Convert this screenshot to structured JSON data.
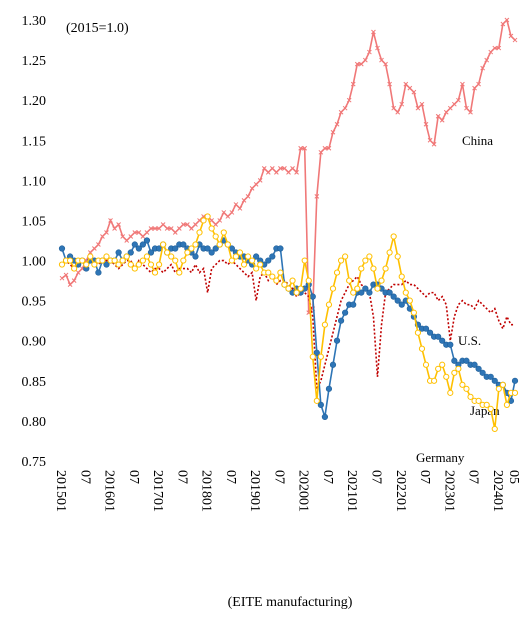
{
  "chart_data": {
    "type": "line",
    "annotation": "(2015=1.0)",
    "x_label": "(EITE manufacturing)",
    "categories": [
      "201501",
      null,
      null,
      null,
      null,
      null,
      "07",
      null,
      null,
      null,
      null,
      null,
      "201601",
      null,
      null,
      null,
      null,
      null,
      "07",
      null,
      null,
      null,
      null,
      null,
      "201701",
      null,
      null,
      null,
      null,
      null,
      "07",
      null,
      null,
      null,
      null,
      null,
      "201801",
      null,
      null,
      null,
      null,
      null,
      "07",
      null,
      null,
      null,
      null,
      null,
      "201901",
      null,
      null,
      null,
      null,
      null,
      "07",
      null,
      null,
      null,
      null,
      null,
      "202001",
      null,
      null,
      null,
      null,
      null,
      "07",
      null,
      null,
      null,
      null,
      null,
      "202101",
      null,
      null,
      null,
      null,
      null,
      "07",
      null,
      null,
      null,
      null,
      null,
      "202201",
      null,
      null,
      null,
      null,
      null,
      "07",
      null,
      null,
      null,
      null,
      null,
      "202301",
      null,
      null,
      null,
      null,
      null,
      "07",
      null,
      null,
      null,
      null,
      null,
      "202401",
      null,
      null,
      null,
      "05"
    ],
    "ylim": [
      0.75,
      1.3
    ],
    "yticks": [
      {
        "value": 0.75,
        "label": "0.75"
      },
      {
        "value": 0.8,
        "label": "0.80"
      },
      {
        "value": 0.85,
        "label": "0.85"
      },
      {
        "value": 0.9,
        "label": "0.90"
      },
      {
        "value": 0.95,
        "label": "0.95"
      },
      {
        "value": 1.0,
        "label": "1.00"
      },
      {
        "value": 1.05,
        "label": "1.05"
      },
      {
        "value": 1.1,
        "label": "1.10"
      },
      {
        "value": 1.15,
        "label": "1.15"
      },
      {
        "value": 1.2,
        "label": "1.20"
      },
      {
        "value": 1.25,
        "label": "1.25"
      },
      {
        "value": 1.3,
        "label": "1.30"
      }
    ],
    "grid": false,
    "series": [
      {
        "name": "China",
        "color": "#f07878",
        "marker": "cross",
        "line_style": "solid",
        "values": [
          0.978,
          0.982,
          0.97,
          0.975,
          0.985,
          0.99,
          1.0,
          1.01,
          1.015,
          1.02,
          1.03,
          1.035,
          1.05,
          1.04,
          1.045,
          1.03,
          1.025,
          1.03,
          1.035,
          1.035,
          1.03,
          1.035,
          1.04,
          1.04,
          1.04,
          1.045,
          1.04,
          1.04,
          1.035,
          1.04,
          1.045,
          1.045,
          1.04,
          1.045,
          1.05,
          1.055,
          1.055,
          1.05,
          1.045,
          1.05,
          1.06,
          1.055,
          1.06,
          1.07,
          1.065,
          1.075,
          1.08,
          1.09,
          1.095,
          1.1,
          1.115,
          1.11,
          1.115,
          1.11,
          1.115,
          1.115,
          1.11,
          1.115,
          1.11,
          1.14,
          1.14,
          0.935,
          0.94,
          1.08,
          1.135,
          1.14,
          1.14,
          1.16,
          1.17,
          1.185,
          1.19,
          1.2,
          1.22,
          1.245,
          1.245,
          1.25,
          1.26,
          1.285,
          1.265,
          1.25,
          1.245,
          1.22,
          1.19,
          1.185,
          1.195,
          1.22,
          1.215,
          1.21,
          1.19,
          1.195,
          1.17,
          1.15,
          1.145,
          1.18,
          1.175,
          1.185,
          1.19,
          1.195,
          1.2,
          1.22,
          1.19,
          1.185,
          1.215,
          1.22,
          1.24,
          1.25,
          1.26,
          1.265,
          1.265,
          1.295,
          1.3,
          1.28,
          1.275
        ]
      },
      {
        "name": "U.S.",
        "color": "#c00000",
        "marker": "none",
        "line_style": "dotted",
        "values": [
          0.995,
          1.0,
          0.995,
          0.99,
          1.0,
          1.0,
          0.995,
          1.0,
          1.0,
          0.995,
          1.0,
          1.0,
          1.0,
          0.995,
          0.99,
          0.995,
          1.0,
          1.0,
          0.99,
          1.0,
          0.995,
          0.99,
          0.985,
          0.99,
          0.99,
          0.985,
          0.99,
          0.995,
          0.985,
          0.99,
          0.99,
          0.99,
          0.985,
          0.995,
          0.985,
          0.99,
          0.96,
          0.99,
          0.995,
          1.0,
          1.0,
          0.995,
          1.0,
          0.995,
          0.99,
          0.985,
          0.98,
          0.985,
          0.95,
          0.98,
          0.985,
          0.975,
          0.98,
          0.97,
          0.975,
          0.975,
          0.97,
          0.965,
          0.955,
          0.96,
          0.96,
          0.955,
          0.93,
          0.84,
          0.85,
          0.87,
          0.89,
          0.91,
          0.93,
          0.95,
          0.96,
          0.97,
          0.975,
          0.98,
          0.97,
          0.965,
          0.96,
          0.93,
          0.855,
          0.92,
          0.96,
          0.965,
          0.97,
          0.97,
          0.97,
          0.975,
          0.97,
          0.97,
          0.965,
          0.96,
          0.955,
          0.96,
          0.96,
          0.95,
          0.955,
          0.945,
          0.9,
          0.93,
          0.945,
          0.95,
          0.945,
          0.945,
          0.94,
          0.95,
          0.945,
          0.94,
          0.935,
          0.94,
          0.925,
          0.915,
          0.93,
          0.92,
          0.92
        ]
      },
      {
        "name": "Japan",
        "color": "#2e75b6",
        "marker": "filled-circle",
        "line_style": "solid",
        "values": [
          1.015,
          1.0,
          1.005,
          1.0,
          0.995,
          1.0,
          0.99,
          1.0,
          1.0,
          0.985,
          1.0,
          0.995,
          1.0,
          1.0,
          1.01,
          1.0,
          1.005,
          1.01,
          1.02,
          1.015,
          1.02,
          1.025,
          1.01,
          1.015,
          1.015,
          1.02,
          1.01,
          1.015,
          1.015,
          1.02,
          1.02,
          1.015,
          1.01,
          1.005,
          1.02,
          1.015,
          1.015,
          1.01,
          1.015,
          1.02,
          1.025,
          1.02,
          1.015,
          1.01,
          1.005,
          1.005,
          1.0,
          0.995,
          1.005,
          1.0,
          0.995,
          1.0,
          1.005,
          1.015,
          1.015,
          0.97,
          0.965,
          0.96,
          0.965,
          0.96,
          0.965,
          0.97,
          0.955,
          0.885,
          0.82,
          0.805,
          0.84,
          0.87,
          0.9,
          0.925,
          0.935,
          0.945,
          0.945,
          0.96,
          0.96,
          0.965,
          0.96,
          0.97,
          0.97,
          0.965,
          0.96,
          0.96,
          0.955,
          0.95,
          0.945,
          0.95,
          0.94,
          0.93,
          0.92,
          0.915,
          0.915,
          0.91,
          0.905,
          0.905,
          0.9,
          0.895,
          0.895,
          0.875,
          0.87,
          0.875,
          0.875,
          0.87,
          0.87,
          0.865,
          0.86,
          0.855,
          0.855,
          0.85,
          0.845,
          0.845,
          0.835,
          0.825,
          0.85
        ]
      },
      {
        "name": "Germany",
        "color": "#ffc000",
        "marker": "hollow-circle",
        "line_style": "solid",
        "values": [
          0.995,
          1.0,
          1.0,
          0.99,
          1.0,
          1.0,
          0.995,
          1.005,
          0.995,
          1.0,
          1.0,
          1.005,
          1.0,
          1.0,
          0.995,
          1.0,
          1.005,
          0.995,
          0.99,
          0.995,
          1.0,
          1.005,
          0.995,
          0.985,
          0.995,
          1.02,
          1.01,
          1.005,
          1.0,
          0.985,
          1.0,
          1.01,
          1.015,
          1.02,
          1.035,
          1.05,
          1.055,
          1.04,
          1.03,
          1.02,
          1.035,
          1.02,
          1.0,
          1.005,
          1.01,
          0.995,
          1.005,
          1.0,
          0.99,
          0.995,
          0.985,
          0.985,
          0.98,
          0.975,
          0.985,
          0.97,
          0.965,
          0.975,
          0.96,
          0.965,
          1.0,
          0.975,
          0.88,
          0.825,
          0.88,
          0.92,
          0.945,
          0.965,
          0.985,
          1.0,
          1.005,
          0.975,
          0.96,
          0.965,
          0.99,
          1.0,
          1.005,
          0.99,
          0.965,
          0.975,
          0.99,
          1.01,
          1.03,
          1.005,
          0.98,
          0.96,
          0.95,
          0.935,
          0.91,
          0.89,
          0.87,
          0.85,
          0.85,
          0.865,
          0.87,
          0.855,
          0.835,
          0.86,
          0.865,
          0.845,
          0.84,
          0.83,
          0.825,
          0.825,
          0.82,
          0.82,
          0.815,
          0.79,
          0.84,
          0.845,
          0.82,
          0.835,
          0.835
        ]
      }
    ]
  }
}
